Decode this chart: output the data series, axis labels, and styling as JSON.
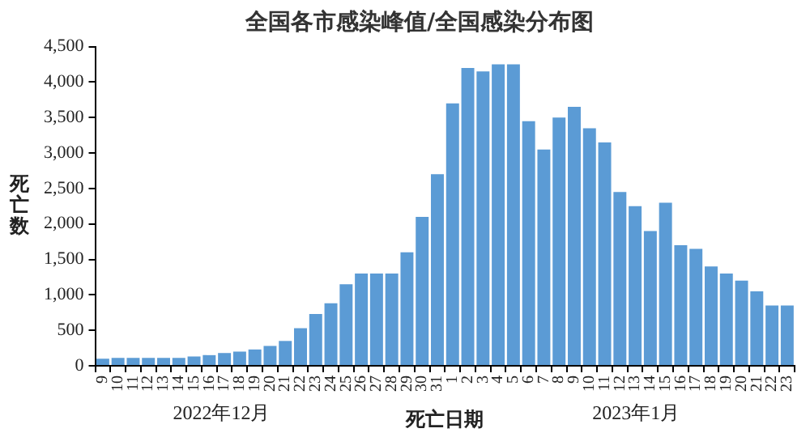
{
  "chart_data": {
    "type": "bar",
    "title": "全国各市感染峰值/全国感染分布图",
    "xlabel": "死亡日期",
    "ylabel": "死亡数",
    "categories": [
      "9",
      "10",
      "11",
      "12",
      "13",
      "14",
      "15",
      "16",
      "17",
      "18",
      "19",
      "20",
      "21",
      "22",
      "23",
      "24",
      "25",
      "26",
      "27",
      "28",
      "29",
      "30",
      "31",
      "1",
      "2",
      "3",
      "4",
      "5",
      "6",
      "7",
      "8",
      "9",
      "10",
      "11",
      "12",
      "13",
      "14",
      "15",
      "16",
      "17",
      "18",
      "19",
      "20",
      "21",
      "22",
      "23"
    ],
    "values": [
      100,
      110,
      110,
      110,
      110,
      110,
      130,
      150,
      180,
      200,
      230,
      280,
      350,
      530,
      730,
      880,
      1150,
      1300,
      1300,
      1300,
      1600,
      2100,
      2700,
      3700,
      4200,
      4150,
      4250,
      4250,
      3450,
      3050,
      3500,
      3650,
      3350,
      3150,
      2450,
      2250,
      1900,
      2300,
      1700,
      1650,
      1400,
      1300,
      1200,
      1050,
      850,
      850
    ],
    "color": "#5b9bd5",
    "ylim": [
      0,
      4500
    ],
    "yticks": [
      {
        "value": 0,
        "label": "0"
      },
      {
        "value": 500,
        "label": "500"
      },
      {
        "value": 1000,
        "label": "1,000"
      },
      {
        "value": 1500,
        "label": "1,500"
      },
      {
        "value": 2000,
        "label": "2,000"
      },
      {
        "value": 2500,
        "label": "2,500"
      },
      {
        "value": 3000,
        "label": "3,000"
      },
      {
        "value": 3500,
        "label": "3,500"
      },
      {
        "value": 4000,
        "label": "4,000"
      },
      {
        "value": 4500,
        "label": "4,500"
      }
    ],
    "grid": false,
    "legend": false,
    "annotations": [
      "2022年12月",
      "2023年1月"
    ]
  }
}
